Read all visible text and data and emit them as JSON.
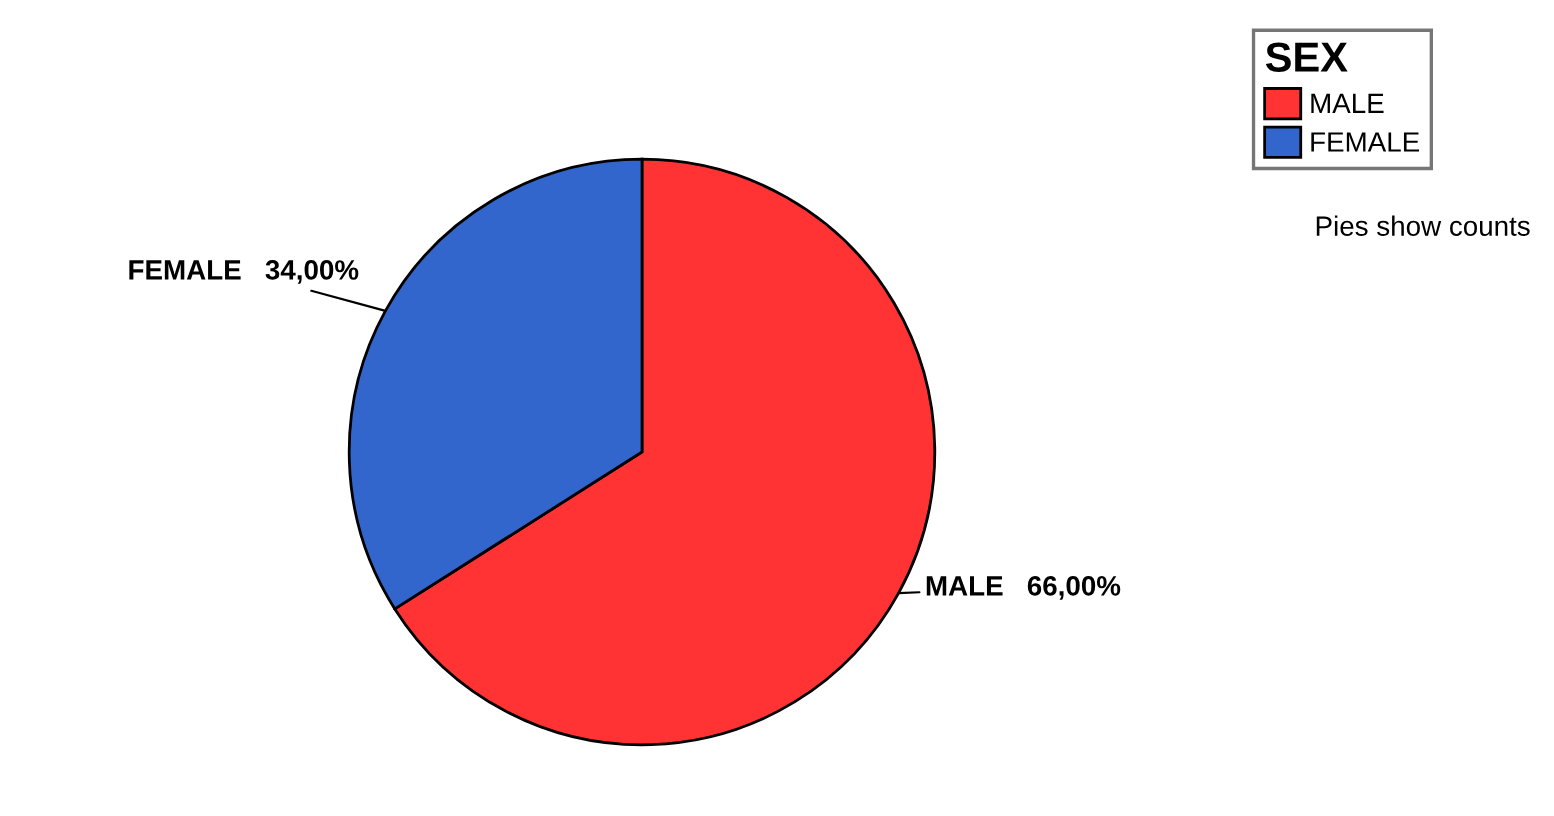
{
  "chart_data": {
    "type": "pie",
    "categories": [
      "MALE",
      "FEMALE"
    ],
    "values": [
      66,
      34
    ],
    "colors": [
      "#ff3333",
      "#3366cc"
    ],
    "value_labels": [
      "66,00%",
      "34,00%"
    ],
    "legend_title": "SEX",
    "legend": "top right",
    "annotations": [
      "Pies show counts"
    ]
  }
}
